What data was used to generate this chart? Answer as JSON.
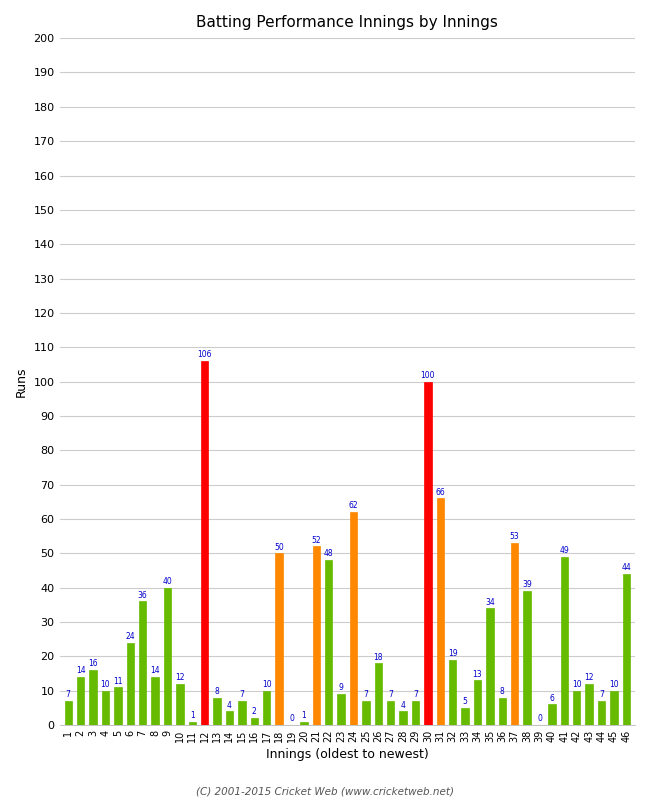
{
  "innings": [
    1,
    2,
    3,
    4,
    5,
    6,
    7,
    8,
    9,
    10,
    11,
    12,
    13,
    14,
    15,
    16,
    17,
    18,
    19,
    20,
    21,
    22,
    23,
    24,
    25,
    26,
    27,
    28,
    29,
    30,
    31,
    32,
    33,
    34,
    35,
    36,
    37,
    38,
    39,
    40,
    41,
    42,
    43,
    44,
    45,
    46
  ],
  "values": [
    7,
    14,
    16,
    10,
    11,
    24,
    36,
    14,
    40,
    12,
    1,
    106,
    8,
    4,
    7,
    2,
    10,
    50,
    0,
    1,
    52,
    48,
    9,
    62,
    7,
    18,
    7,
    4,
    7,
    100,
    66,
    19,
    5,
    13,
    34,
    8,
    53,
    39,
    0,
    6,
    49,
    10,
    12,
    7,
    10,
    44
  ],
  "colors": [
    "#66bb00",
    "#66bb00",
    "#66bb00",
    "#66bb00",
    "#66bb00",
    "#66bb00",
    "#66bb00",
    "#66bb00",
    "#66bb00",
    "#66bb00",
    "#66bb00",
    "#ff0000",
    "#66bb00",
    "#66bb00",
    "#66bb00",
    "#66bb00",
    "#66bb00",
    "#ff8800",
    "#66bb00",
    "#66bb00",
    "#ff8800",
    "#66bb00",
    "#66bb00",
    "#ff8800",
    "#66bb00",
    "#66bb00",
    "#66bb00",
    "#66bb00",
    "#66bb00",
    "#ff0000",
    "#ff8800",
    "#66bb00",
    "#66bb00",
    "#66bb00",
    "#66bb00",
    "#66bb00",
    "#ff8800",
    "#66bb00",
    "#66bb00",
    "#66bb00",
    "#66bb00",
    "#66bb00",
    "#66bb00",
    "#66bb00",
    "#66bb00",
    "#66bb00"
  ],
  "title": "Batting Performance Innings by Innings",
  "xlabel": "Innings (oldest to newest)",
  "ylabel": "Runs",
  "ylim": [
    0,
    200
  ],
  "yticks": [
    0,
    10,
    20,
    30,
    40,
    50,
    60,
    70,
    80,
    90,
    100,
    110,
    120,
    130,
    140,
    150,
    160,
    170,
    180,
    190,
    200
  ],
  "bg_color": "#ffffff",
  "grid_color": "#cccccc",
  "label_color": "#0000cc",
  "footer": "(C) 2001-2015 Cricket Web (www.cricketweb.net)",
  "bar_width": 0.6
}
